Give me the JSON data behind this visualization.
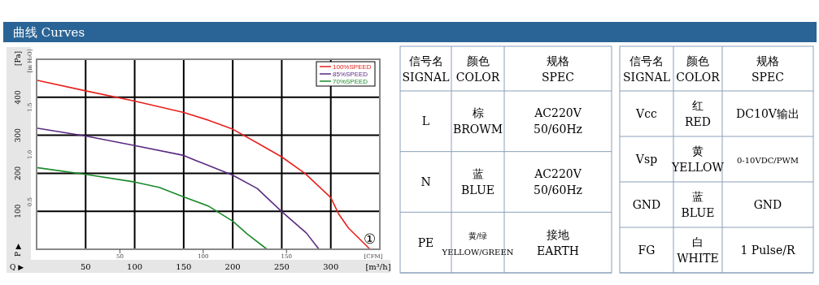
{
  "chart_data": [
    {
      "type": "line",
      "title": "曲线 Curves",
      "xlabel": "[m³/h]",
      "x2label": "[CFM]",
      "ylabel": "[Pa]",
      "y2label": "[in H₂O]",
      "xlim": [
        0,
        350
      ],
      "xticks": [
        50,
        100,
        150,
        200,
        250,
        300
      ],
      "x2lim": [
        0,
        206
      ],
      "x2ticks": [
        50,
        100,
        150
      ],
      "ylim": [
        0,
        500
      ],
      "yticks": [
        100,
        200,
        300,
        400
      ],
      "y2lim": [
        0,
        2.007
      ],
      "y2ticks": [
        0.5,
        {
          "value": 1.0,
          "label": "1.0"
        },
        1.5
      ],
      "grid": true,
      "legend": "top right",
      "annotations": [
        "①",
        "Q ▶",
        "P ▶"
      ],
      "series": [
        {
          "name": "100%SPEED",
          "color": "#e8211c",
          "x": [
            0,
            50,
            100,
            150,
            175,
            200,
            225,
            250,
            274,
            300,
            308,
            318,
            340
          ],
          "values": [
            445,
            417,
            390,
            360,
            340,
            316,
            280,
            243,
            199,
            136,
            93,
            56,
            0
          ]
        },
        {
          "name": "85%SPEED",
          "color": "#5a2a82",
          "x": [
            0,
            50,
            100,
            150,
            162,
            200,
            225,
            250,
            275,
            288
          ],
          "values": [
            319,
            298,
            273,
            247,
            234,
            195,
            160,
            99,
            43,
            0
          ]
        },
        {
          "name": "70%SPEED",
          "color": "#1a8a2a",
          "x": [
            0,
            50,
            100,
            125,
            150,
            175,
            185,
            200,
            215,
            235
          ],
          "values": [
            215,
            197,
            177,
            163,
            138,
            114,
            98,
            74,
            40,
            0
          ]
        }
      ]
    },
    {
      "type": "other",
      "categories": [
        "信号名\nSIGNAL",
        "颜色\nCOLOR",
        "规格\nSPEC"
      ],
      "annotations": [
        "L",
        "棕\nBROWM",
        "AC220V\n50/60Hz",
        "N",
        "蓝\nBLUE",
        "AC220V\n50/60Hz",
        "PE",
        "黄/绿\nYELLOW/GREEN",
        "接地\nEARTH"
      ]
    },
    {
      "type": "other",
      "categories": [
        "信号名\nSIGNAL",
        "颜色\nCOLOR",
        "规格\nSPEC"
      ],
      "annotations": [
        "Vcc",
        "红\nRED",
        "DC10V输出",
        "Vsp",
        "黄\nYELLOW",
        "0-10VDC/PWM",
        "GND",
        "蓝\nBLUE",
        "GND",
        "FG",
        "白\nWHITE",
        "1 Pulse/R"
      ]
    }
  ]
}
